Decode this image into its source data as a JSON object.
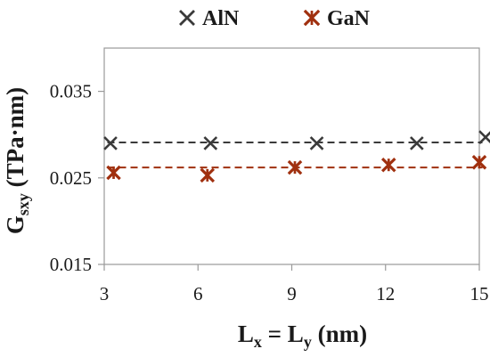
{
  "chart_data": {
    "type": "scatter",
    "title": "",
    "xlabel": {
      "main": "L",
      "sub_x": "x",
      "eq": " = L",
      "sub_y": "y",
      "unit": " (nm)"
    },
    "ylabel": {
      "main": "G",
      "sub": "sxy",
      "unit": " (TPa·nm)"
    },
    "xlim": [
      3,
      15
    ],
    "ylim": [
      0.015,
      0.04
    ],
    "x_ticks": [
      "3",
      "6",
      "9",
      "12",
      "15"
    ],
    "x_tick_values": [
      3,
      6,
      9,
      12,
      15
    ],
    "y_ticks": [
      "0.015",
      "0.025",
      "0.035"
    ],
    "y_tick_values": [
      0.015,
      0.025,
      0.035
    ],
    "grid": false,
    "legend_position": "top-center",
    "series": [
      {
        "name": "AlN",
        "color": "#3a3a3a",
        "marker": "x",
        "x": [
          3.2,
          6.4,
          9.8,
          13.0,
          15.2
        ],
        "y": [
          0.029,
          0.029,
          0.029,
          0.029,
          0.0297
        ],
        "mean_line": 0.0291
      },
      {
        "name": "GaN",
        "color": "#a0300f",
        "marker": "star",
        "x": [
          3.3,
          6.3,
          9.1,
          12.1,
          15.0
        ],
        "y": [
          0.0256,
          0.0253,
          0.0262,
          0.0265,
          0.0268
        ],
        "mean_line": 0.0262
      }
    ]
  }
}
